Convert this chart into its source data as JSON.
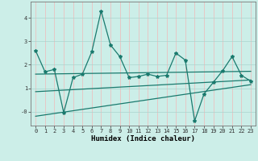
{
  "xlabel": "Humidex (Indice chaleur)",
  "background_color": "#cceee8",
  "line_color": "#1a7a6e",
  "grid_color": "#aad4ce",
  "grid_color2": "#f0b8b8",
  "xlim": [
    -0.5,
    23.5
  ],
  "ylim": [
    -0.6,
    4.7
  ],
  "xticks": [
    0,
    1,
    2,
    3,
    4,
    5,
    6,
    7,
    8,
    9,
    10,
    11,
    12,
    13,
    14,
    15,
    16,
    17,
    18,
    19,
    20,
    21,
    22,
    23
  ],
  "yticks": [
    0,
    1,
    2,
    3,
    4
  ],
  "ytick_labels": [
    "-0",
    "1",
    "2",
    "3",
    "4"
  ],
  "series1_x": [
    0,
    1,
    2,
    3,
    4,
    5,
    6,
    7,
    8,
    9,
    10,
    11,
    12,
    13,
    14,
    15,
    16,
    17,
    18,
    19,
    20,
    21,
    22,
    23
  ],
  "series1_y": [
    2.6,
    1.7,
    1.8,
    -0.05,
    1.45,
    1.6,
    2.55,
    4.3,
    2.85,
    2.35,
    1.45,
    1.5,
    1.6,
    1.5,
    1.55,
    2.5,
    2.2,
    -0.4,
    0.75,
    1.25,
    1.75,
    2.35,
    1.55,
    1.3
  ],
  "series2_x": [
    0,
    23
  ],
  "series2_y": [
    0.85,
    1.35
  ],
  "series3_x": [
    0,
    23
  ],
  "series3_y": [
    1.6,
    1.72
  ],
  "series4_x": [
    0,
    23
  ],
  "series4_y": [
    -0.2,
    1.15
  ],
  "marker": "*",
  "markersize": 3,
  "linewidth": 0.9,
  "xlabel_fontsize": 6.5,
  "tick_fontsize": 5
}
